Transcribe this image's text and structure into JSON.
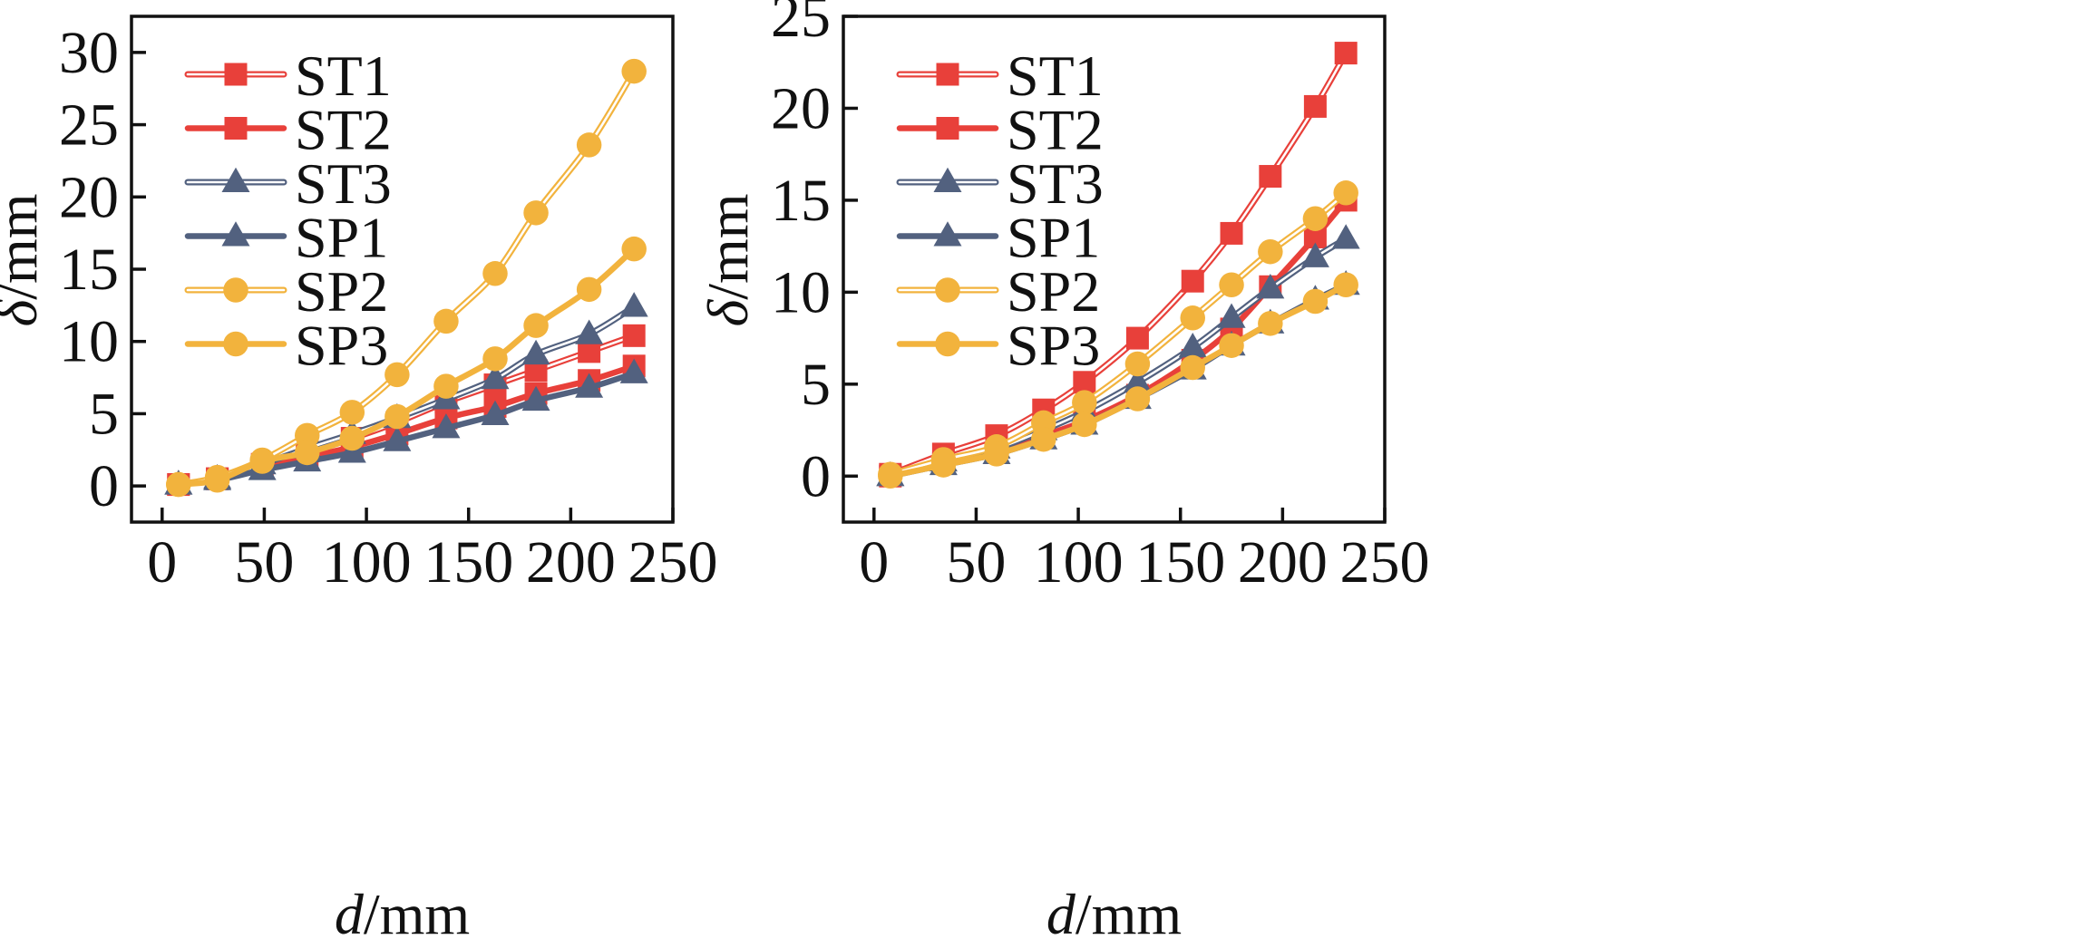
{
  "chart_data": [
    {
      "type": "line",
      "title": "",
      "xlabel": {
        "symbol": "d",
        "unit": "/mm"
      },
      "ylabel": {
        "symbol": "δ",
        "unit": "/mm"
      },
      "xlim": [
        -15,
        250
      ],
      "ylim": [
        -2.5,
        32.5
      ],
      "xticks": [
        0,
        50,
        100,
        150,
        200,
        250
      ],
      "yticks": [
        0,
        5,
        10,
        15,
        20,
        25,
        30
      ],
      "grid": false,
      "legend_position": "top-left",
      "series": [
        {
          "name": "ST1",
          "color": "#e8403a",
          "style": "double",
          "marker": "square",
          "x": [
            8,
            27,
            49,
            71,
            93,
            115,
            139,
            163,
            183,
            209,
            231
          ],
          "y": [
            0.1,
            0.5,
            1.5,
            2.4,
            3.3,
            4.4,
            5.8,
            7.0,
            8.0,
            9.3,
            10.4
          ]
        },
        {
          "name": "ST2",
          "color": "#e8403a",
          "style": "solid",
          "marker": "square",
          "x": [
            8,
            27,
            49,
            71,
            93,
            115,
            139,
            163,
            183,
            209,
            231
          ],
          "y": [
            0.1,
            0.5,
            1.3,
            2.0,
            2.7,
            3.6,
            4.7,
            5.5,
            6.4,
            7.3,
            8.3
          ]
        },
        {
          "name": "ST3",
          "color": "#52617f",
          "style": "double",
          "marker": "triangle",
          "x": [
            8,
            27,
            49,
            71,
            93,
            115,
            139,
            163,
            183,
            209,
            231
          ],
          "y": [
            0.1,
            0.5,
            1.5,
            2.6,
            3.6,
            4.7,
            6.0,
            7.4,
            9.1,
            10.5,
            12.4
          ]
        },
        {
          "name": "SP1",
          "color": "#52617f",
          "style": "solid",
          "marker": "triangle",
          "x": [
            8,
            27,
            49,
            71,
            93,
            115,
            139,
            163,
            183,
            209,
            231
          ],
          "y": [
            0.1,
            0.4,
            1.1,
            1.7,
            2.3,
            3.1,
            4.0,
            4.9,
            5.9,
            6.8,
            7.8
          ]
        },
        {
          "name": "SP2",
          "color": "#f2b33d",
          "style": "double",
          "marker": "circle",
          "x": [
            8,
            27,
            49,
            71,
            93,
            115,
            139,
            163,
            183,
            209,
            231
          ],
          "y": [
            0.1,
            0.6,
            1.8,
            3.5,
            5.1,
            7.7,
            11.4,
            14.7,
            18.9,
            23.6,
            28.7
          ]
        },
        {
          "name": "SP3",
          "color": "#f2b33d",
          "style": "solid",
          "marker": "circle",
          "x": [
            8,
            27,
            49,
            71,
            93,
            115,
            139,
            163,
            183,
            209,
            231
          ],
          "y": [
            0.1,
            0.4,
            1.7,
            2.3,
            3.3,
            4.8,
            6.9,
            8.8,
            11.1,
            13.6,
            16.4
          ]
        }
      ]
    },
    {
      "type": "line",
      "title": "",
      "xlabel": {
        "symbol": "d",
        "unit": "/mm"
      },
      "ylabel": {
        "symbol": "δ",
        "unit": "/mm"
      },
      "xlim": [
        -15,
        250
      ],
      "ylim": [
        -2.5,
        25
      ],
      "xticks": [
        0,
        50,
        100,
        150,
        200,
        250
      ],
      "yticks": [
        0,
        5,
        10,
        15,
        20,
        25
      ],
      "grid": false,
      "legend_position": "top-left",
      "series": [
        {
          "name": "ST1",
          "color": "#e8403a",
          "style": "double",
          "marker": "square",
          "x": [
            8,
            34,
            60,
            83,
            103,
            129,
            156,
            175,
            194,
            216,
            231
          ],
          "y": [
            0.1,
            1.2,
            2.2,
            3.6,
            5.1,
            7.5,
            10.6,
            13.2,
            16.3,
            20.1,
            23.0
          ]
        },
        {
          "name": "ST2",
          "color": "#e8403a",
          "style": "solid",
          "marker": "square",
          "x": [
            8,
            34,
            60,
            83,
            103,
            129,
            156,
            175,
            194,
            216,
            231
          ],
          "y": [
            0.0,
            0.7,
            1.3,
            2.2,
            3.0,
            4.4,
            6.3,
            8.0,
            10.3,
            13.0,
            15.0
          ]
        },
        {
          "name": "ST3",
          "color": "#52617f",
          "style": "double",
          "marker": "triangle",
          "x": [
            8,
            34,
            60,
            83,
            103,
            129,
            156,
            175,
            194,
            216,
            231
          ],
          "y": [
            0.0,
            0.8,
            1.5,
            2.5,
            3.5,
            5.1,
            7.0,
            8.6,
            10.2,
            11.9,
            12.9
          ]
        },
        {
          "name": "SP1",
          "color": "#52617f",
          "style": "solid",
          "marker": "triangle",
          "x": [
            8,
            34,
            60,
            83,
            103,
            129,
            156,
            175,
            194,
            216,
            231
          ],
          "y": [
            0.0,
            0.6,
            1.2,
            2.0,
            2.8,
            4.2,
            5.8,
            7.1,
            8.3,
            9.6,
            10.4
          ]
        },
        {
          "name": "SP2",
          "color": "#f2b33d",
          "style": "double",
          "marker": "circle",
          "x": [
            8,
            34,
            60,
            83,
            103,
            129,
            156,
            175,
            194,
            216,
            231
          ],
          "y": [
            0.1,
            0.9,
            1.6,
            2.9,
            4.0,
            6.1,
            8.6,
            10.4,
            12.2,
            14.0,
            15.4
          ]
        },
        {
          "name": "SP3",
          "color": "#f2b33d",
          "style": "solid",
          "marker": "circle",
          "x": [
            8,
            34,
            60,
            83,
            103,
            129,
            156,
            175,
            194,
            216,
            231
          ],
          "y": [
            0.0,
            0.6,
            1.2,
            2.0,
            2.8,
            4.2,
            5.9,
            7.1,
            8.3,
            9.5,
            10.4
          ]
        }
      ]
    }
  ]
}
